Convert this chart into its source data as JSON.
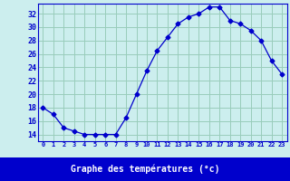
{
  "hours": [
    0,
    1,
    2,
    3,
    4,
    5,
    6,
    7,
    8,
    9,
    10,
    11,
    12,
    13,
    14,
    15,
    16,
    17,
    18,
    19,
    20,
    21,
    22,
    23
  ],
  "temps": [
    18,
    17,
    15,
    14.5,
    14,
    14,
    14,
    14,
    16.5,
    20,
    23.5,
    26.5,
    28.5,
    30.5,
    31.5,
    32,
    33,
    33,
    31,
    30.5,
    29.5,
    28,
    25,
    23
  ],
  "line_color": "#0000cc",
  "marker": "D",
  "marker_size": 2.5,
  "bg_color": "#cceeee",
  "grid_color": "#99ccbb",
  "xlabel": "Graphe des températures (°c)",
  "xlabel_bg": "#0000cc",
  "xlabel_fg": "#ffffff",
  "tick_color": "#0000cc",
  "xlim": [
    -0.5,
    23.5
  ],
  "ylim": [
    13.0,
    33.5
  ],
  "yticks": [
    14,
    16,
    18,
    20,
    22,
    24,
    26,
    28,
    30,
    32
  ],
  "xticks": [
    0,
    1,
    2,
    3,
    4,
    5,
    6,
    7,
    8,
    9,
    10,
    11,
    12,
    13,
    14,
    15,
    16,
    17,
    18,
    19,
    20,
    21,
    22,
    23
  ]
}
